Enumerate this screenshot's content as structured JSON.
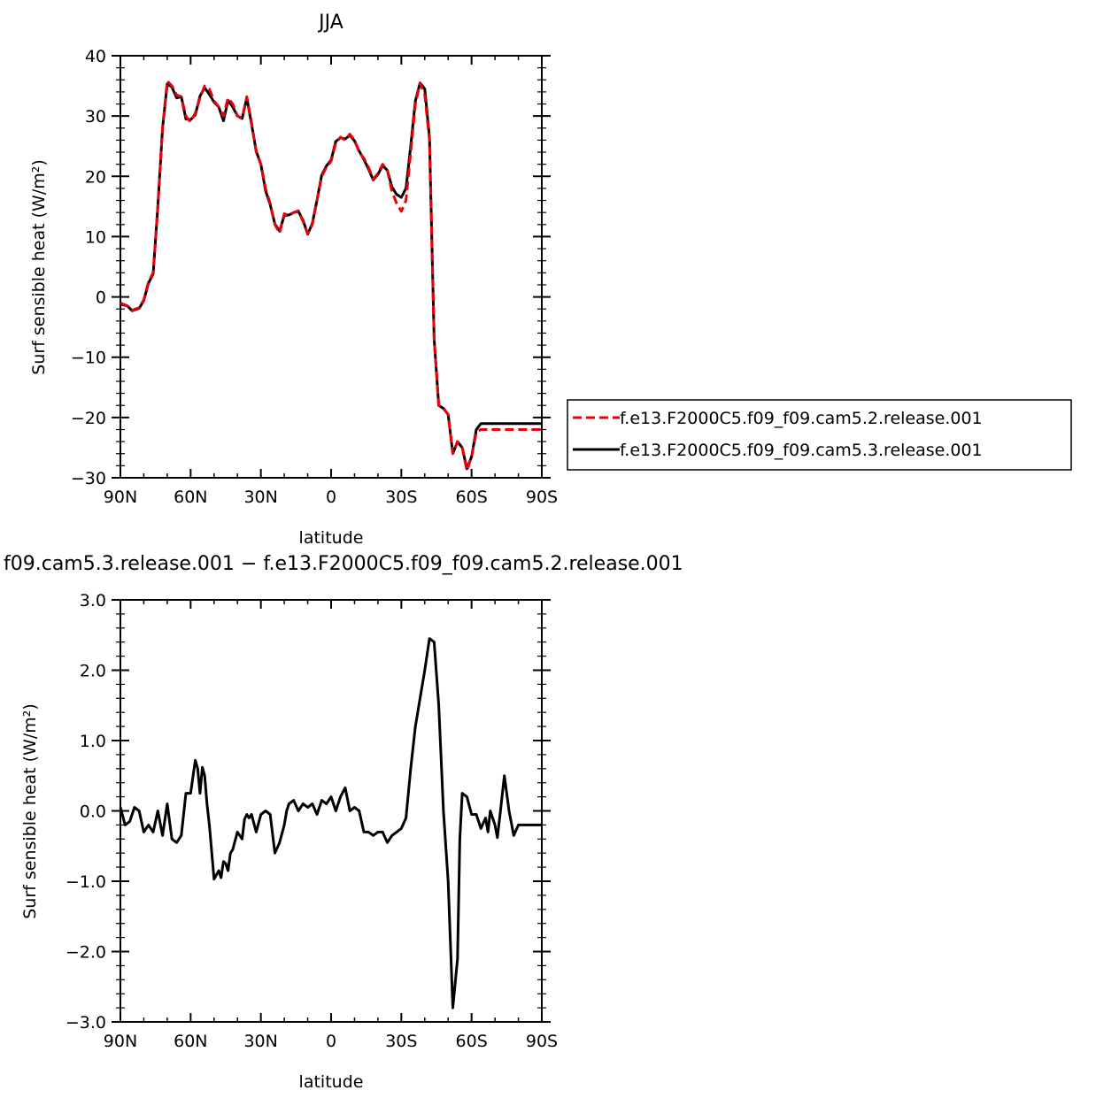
{
  "chart_data": [
    {
      "type": "line",
      "title": "JJA",
      "xlabel": "latitude",
      "ylabel": "Surf sensible heat (W/m²)",
      "x_ticks": [
        "90N",
        "60N",
        "30N",
        "0",
        "30S",
        "60S",
        "90S"
      ],
      "x_tick_values": [
        90,
        60,
        30,
        0,
        -30,
        -60,
        -90
      ],
      "xlim": [
        90,
        -90
      ],
      "ylim": [
        -30,
        40
      ],
      "y_ticks": [
        "−30",
        "−20",
        "−10",
        "0",
        "10",
        "20",
        "30",
        "40"
      ],
      "y_tick_values": [
        -30,
        -20,
        -10,
        0,
        10,
        20,
        30,
        40
      ],
      "grid": false,
      "legend_position": "right",
      "series": [
        {
          "name": "f.e13.F2000C5.f09_f09.cam5.2.release.001",
          "color": "#e8000b",
          "style": "dashed",
          "x": [
            90,
            87,
            85,
            82,
            80,
            78,
            76,
            74,
            72,
            70,
            68,
            66,
            64,
            62,
            60,
            58,
            56,
            54,
            52,
            50,
            48,
            46,
            44,
            42,
            40,
            38,
            36,
            34,
            32,
            30,
            28,
            26,
            24,
            22,
            20,
            18,
            16,
            14,
            12,
            10,
            8,
            6,
            4,
            2,
            0,
            -2,
            -4,
            -6,
            -8,
            -10,
            -12,
            -14,
            -16,
            -18,
            -20,
            -22,
            -24,
            -26,
            -28,
            -30,
            -32,
            -34,
            -36,
            -38,
            -40,
            -42,
            -44,
            -46,
            -48,
            -50,
            -52,
            -54,
            -56,
            -58,
            -60,
            -62,
            -64,
            -66,
            -68,
            -70,
            -72,
            -74,
            -76,
            -78,
            -80,
            -82,
            -84,
            -86,
            -88,
            -90
          ],
          "y": [
            -1.0,
            -1.5,
            -2.2,
            -1.8,
            -0.5,
            2.5,
            4,
            15,
            28,
            35.8,
            35,
            33.5,
            33.2,
            30,
            29,
            30.5,
            33,
            35,
            34.5,
            32.5,
            31.5,
            30,
            33,
            32,
            30,
            29.7,
            33.2,
            29,
            24,
            22,
            18,
            15.5,
            12,
            10.6,
            13.8,
            13.5,
            14,
            14.3,
            12.5,
            10.5,
            12,
            16,
            20,
            21.5,
            22.5,
            25.5,
            26.5,
            26,
            27,
            26,
            24,
            23,
            21.5,
            19.5,
            20.5,
            22,
            21,
            17.5,
            15.5,
            14.2,
            16,
            24,
            32,
            35.5,
            33.5,
            26,
            -7,
            -18,
            -18.5,
            -19.5,
            -26,
            -24,
            -25,
            -28.8,
            -26.5,
            -22.5,
            -22,
            -22,
            -22,
            -22,
            -22,
            -22,
            -22,
            -22,
            -22,
            -22,
            -22,
            -22,
            -22,
            -22
          ]
        },
        {
          "name": "f.e13.F2000C5.f09_f09.cam5.3.release.001",
          "color": "#000000",
          "style": "solid",
          "x": [
            90,
            87,
            85,
            82,
            80,
            78,
            76,
            74,
            72,
            70,
            68,
            66,
            64,
            62,
            60,
            58,
            56,
            54,
            52,
            50,
            48,
            46,
            44,
            42,
            40,
            38,
            36,
            34,
            32,
            30,
            28,
            26,
            24,
            22,
            20,
            18,
            16,
            14,
            12,
            10,
            8,
            6,
            4,
            2,
            0,
            -2,
            -4,
            -6,
            -8,
            -10,
            -12,
            -14,
            -16,
            -18,
            -20,
            -22,
            -24,
            -26,
            -28,
            -30,
            -32,
            -34,
            -36,
            -38,
            -40,
            -42,
            -44,
            -46,
            -48,
            -50,
            -52,
            -54,
            -56,
            -58,
            -60,
            -62,
            -64,
            -66,
            -68,
            -70,
            -72,
            -74,
            -76,
            -78,
            -80,
            -82,
            -84,
            -86,
            -88,
            -90
          ],
          "y": [
            -1.2,
            -1.5,
            -2.3,
            -1.9,
            -0.6,
            2.3,
            3.8,
            15,
            28,
            35.3,
            34.8,
            33,
            33.2,
            29.5,
            29.4,
            30.2,
            33.3,
            34.7,
            33.6,
            32.3,
            31.5,
            29.2,
            32.6,
            31.5,
            30,
            29.6,
            33,
            28.7,
            24.2,
            22,
            17.6,
            15.3,
            12.1,
            10.9,
            13.5,
            13.6,
            14,
            14.2,
            12.7,
            10.4,
            12.2,
            16.1,
            20.2,
            21.7,
            22.7,
            25.8,
            26.4,
            26.2,
            26.8,
            25.9,
            24.2,
            22.8,
            21.2,
            19.4,
            20.3,
            21.8,
            21,
            18.2,
            17,
            16.5,
            18,
            25,
            32.5,
            35.5,
            34.5,
            26.5,
            -7,
            -18,
            -18.5,
            -19.5,
            -26,
            -24,
            -25,
            -28.5,
            -26.5,
            -22,
            -21,
            -21,
            -21,
            -21,
            -21,
            -21,
            -21,
            -21,
            -21,
            -21,
            -21,
            -21,
            -21,
            -21
          ]
        }
      ]
    },
    {
      "type": "line",
      "title": "f09.cam5.3.release.001 − f.e13.F2000C5.f09_f09.cam5.2.release.001",
      "xlabel": "latitude",
      "ylabel": "Surf sensible heat (W/m²)",
      "x_ticks": [
        "90N",
        "60N",
        "30N",
        "0",
        "30S",
        "60S",
        "90S"
      ],
      "x_tick_values": [
        90,
        60,
        30,
        0,
        -30,
        -60,
        -90
      ],
      "xlim": [
        90,
        -90
      ],
      "ylim": [
        -3,
        3
      ],
      "y_ticks": [
        "−3.0",
        "−2.0",
        "−1.0",
        "0.0",
        "1.0",
        "2.0",
        "3.0"
      ],
      "y_tick_values": [
        -3,
        -2,
        -1,
        0,
        1,
        2,
        3
      ],
      "grid": false,
      "series": [
        {
          "name": "",
          "color": "#000000",
          "style": "solid",
          "x": [
            90,
            88,
            86,
            84,
            82,
            80,
            78,
            76,
            74,
            72,
            70,
            68,
            66,
            64,
            62,
            60,
            58,
            57,
            56,
            55,
            54,
            53,
            52,
            50,
            48,
            47,
            46,
            45,
            44,
            43,
            42,
            40,
            38,
            37,
            36,
            35,
            34,
            32,
            30,
            28,
            26,
            24,
            22,
            20,
            19,
            18,
            16,
            14,
            12,
            10,
            8,
            6,
            4,
            2,
            0,
            -2,
            -4,
            -6,
            -8,
            -10,
            -12,
            -14,
            -16,
            -18,
            -20,
            -22,
            -24,
            -26,
            -28,
            -30,
            -32,
            -34,
            -36,
            -38,
            -40,
            -42,
            -44,
            -46,
            -48,
            -50,
            -52,
            -54,
            -55,
            -56,
            -58,
            -60,
            -62,
            -64,
            -66,
            -67,
            -68,
            -70,
            -71,
            -72,
            -74,
            -76,
            -78,
            -80,
            -82,
            -84,
            -85,
            -86,
            -88,
            -90
          ],
          "y": [
            0.05,
            -0.2,
            -0.15,
            0.05,
            0,
            -0.3,
            -0.2,
            -0.3,
            0,
            -0.35,
            0.1,
            -0.4,
            -0.45,
            -0.35,
            0.25,
            0.25,
            0.72,
            0.6,
            0.25,
            0.62,
            0.5,
            0.1,
            -0.2,
            -0.97,
            -0.85,
            -0.95,
            -0.72,
            -0.75,
            -0.85,
            -0.6,
            -0.55,
            -0.3,
            -0.4,
            -0.12,
            -0.05,
            -0.1,
            -0.05,
            -0.3,
            -0.05,
            0.0,
            -0.05,
            -0.6,
            -0.45,
            -0.2,
            0.0,
            0.1,
            0.15,
            0.0,
            0.1,
            0.05,
            0.1,
            -0.05,
            0.15,
            0.1,
            0.2,
            0.0,
            0.2,
            0.33,
            0.0,
            0.05,
            0.0,
            -0.3,
            -0.3,
            -0.35,
            -0.3,
            -0.3,
            -0.45,
            -0.35,
            -0.3,
            -0.25,
            -0.1,
            0.6,
            1.2,
            1.6,
            2.0,
            2.45,
            2.4,
            1.5,
            0.0,
            -1.0,
            -2.8,
            -2.1,
            -0.4,
            0.25,
            0.2,
            -0.05,
            -0.05,
            -0.25,
            -0.1,
            -0.3,
            0.0,
            -0.2,
            -0.38,
            -0.1,
            0.5,
            0.0,
            -0.35,
            -0.2,
            -0.2,
            -0.2,
            -0.2,
            -0.2,
            -0.2,
            -0.2
          ]
        }
      ]
    }
  ]
}
